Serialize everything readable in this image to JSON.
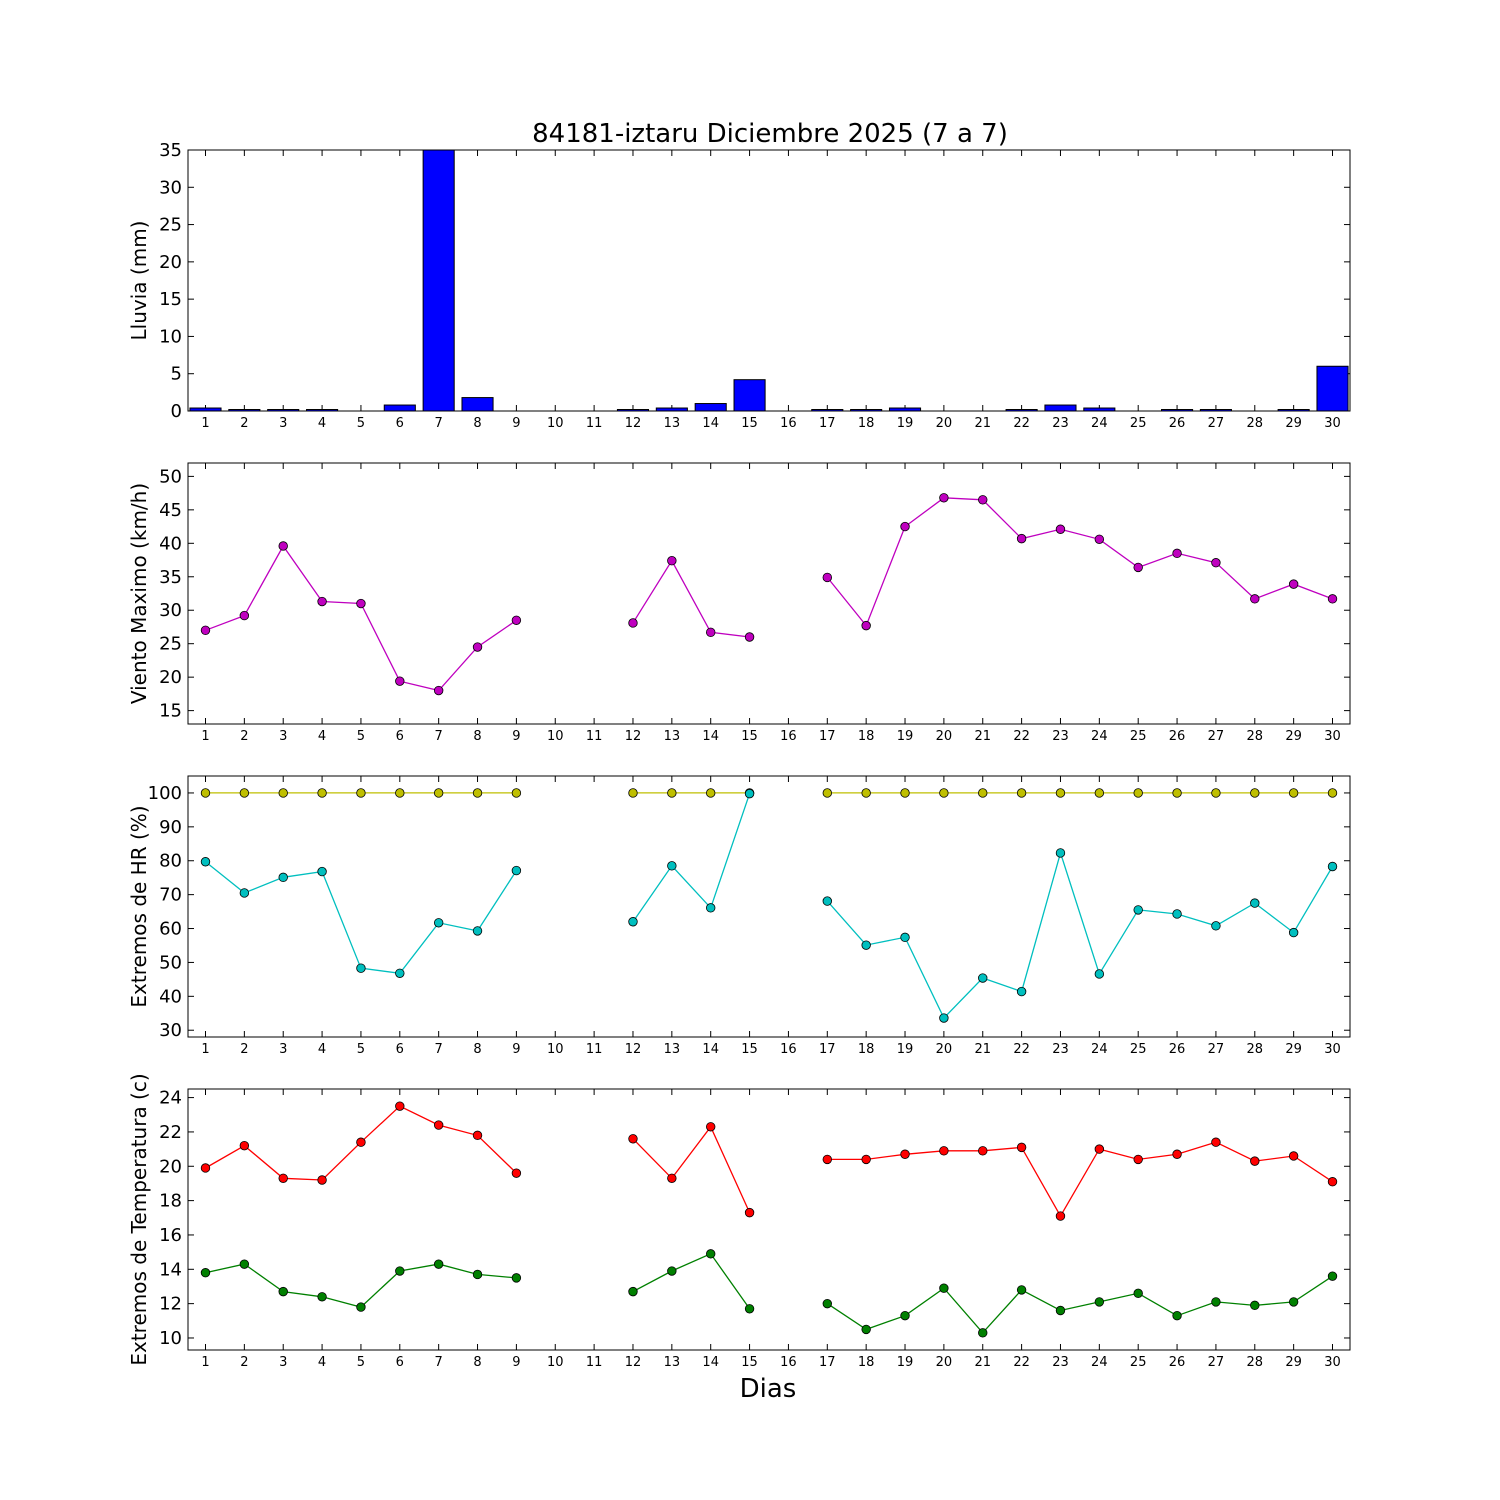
{
  "title": "84181-iztaru Diciembre 2025  (7 a 7)",
  "xlabel": "Dias",
  "chart_data": [
    {
      "type": "bar",
      "ylabel": "Lluvia (mm)",
      "ylim": [
        0,
        35
      ],
      "yticks": [
        0,
        5,
        10,
        15,
        20,
        25,
        30,
        35
      ],
      "x": [
        1,
        2,
        3,
        4,
        5,
        6,
        7,
        8,
        9,
        10,
        11,
        12,
        13,
        14,
        15,
        16,
        17,
        18,
        19,
        20,
        21,
        22,
        23,
        24,
        25,
        26,
        27,
        28,
        29,
        30
      ],
      "series": [
        {
          "color": "#0000ff",
          "values": [
            0.4,
            0.2,
            0.2,
            0.2,
            0.0,
            0.8,
            35.0,
            1.8,
            0.0,
            0.0,
            0.0,
            0.2,
            0.4,
            1.0,
            4.2,
            0.0,
            0.2,
            0.2,
            0.4,
            0.0,
            0.0,
            0.2,
            0.8,
            0.4,
            0.0,
            0.2,
            0.2,
            0.0,
            0.2,
            6.0
          ]
        }
      ]
    },
    {
      "type": "line",
      "ylabel": "Viento Maximo (km/h)",
      "ylim": [
        13,
        52
      ],
      "yticks": [
        15,
        20,
        25,
        30,
        35,
        40,
        45,
        50
      ],
      "x": [
        1,
        2,
        3,
        4,
        5,
        6,
        7,
        8,
        9,
        10,
        11,
        12,
        13,
        14,
        15,
        16,
        17,
        18,
        19,
        20,
        21,
        22,
        23,
        24,
        25,
        26,
        27,
        28,
        29,
        30
      ],
      "series": [
        {
          "color": "#bf00bf",
          "values": [
            27.0,
            29.2,
            39.6,
            31.3,
            31.0,
            19.4,
            18.0,
            24.5,
            28.5,
            null,
            null,
            28.1,
            37.4,
            26.7,
            26.0,
            null,
            34.9,
            27.7,
            42.5,
            46.8,
            46.5,
            40.7,
            42.1,
            40.6,
            36.4,
            38.5,
            37.1,
            31.7,
            33.9,
            31.7
          ]
        }
      ]
    },
    {
      "type": "line",
      "ylabel": "Extremos de HR (%)",
      "ylim": [
        28,
        105
      ],
      "yticks": [
        30,
        40,
        50,
        60,
        70,
        80,
        90,
        100
      ],
      "x": [
        1,
        2,
        3,
        4,
        5,
        6,
        7,
        8,
        9,
        10,
        11,
        12,
        13,
        14,
        15,
        16,
        17,
        18,
        19,
        20,
        21,
        22,
        23,
        24,
        25,
        26,
        27,
        28,
        29,
        30
      ],
      "series": [
        {
          "color": "#bfbf00",
          "values": [
            100,
            100,
            100,
            100,
            100,
            100,
            100,
            100,
            100,
            null,
            null,
            100,
            100,
            100,
            100,
            null,
            100,
            100,
            100,
            100,
            100,
            100,
            100,
            100,
            100,
            100,
            100,
            100,
            100,
            100
          ]
        },
        {
          "color": "#00bfbf",
          "values": [
            79.7,
            70.5,
            75.1,
            76.8,
            48.3,
            46.8,
            61.7,
            59.3,
            77.1,
            null,
            null,
            62.0,
            78.5,
            66.1,
            99.8,
            null,
            68.1,
            55.1,
            57.4,
            33.6,
            45.4,
            41.4,
            82.3,
            46.6,
            65.5,
            64.3,
            60.8,
            67.5,
            58.8,
            78.3
          ]
        }
      ]
    },
    {
      "type": "line",
      "ylabel": "Extremos de Temperatura (c)",
      "ylim": [
        9.3,
        24.5
      ],
      "yticks": [
        10,
        12,
        14,
        16,
        18,
        20,
        22,
        24
      ],
      "x": [
        1,
        2,
        3,
        4,
        5,
        6,
        7,
        8,
        9,
        10,
        11,
        12,
        13,
        14,
        15,
        16,
        17,
        18,
        19,
        20,
        21,
        22,
        23,
        24,
        25,
        26,
        27,
        28,
        29,
        30
      ],
      "series": [
        {
          "color": "#ff0000",
          "values": [
            19.9,
            21.2,
            19.3,
            19.2,
            21.4,
            23.5,
            22.4,
            21.8,
            19.6,
            null,
            null,
            21.6,
            19.3,
            22.3,
            17.3,
            null,
            20.4,
            20.4,
            20.7,
            20.9,
            20.9,
            21.1,
            17.1,
            21.0,
            20.4,
            20.7,
            21.4,
            20.3,
            20.6,
            19.1
          ]
        },
        {
          "color": "#008000",
          "values": [
            13.8,
            14.3,
            12.7,
            12.4,
            11.8,
            13.9,
            14.3,
            13.7,
            13.5,
            null,
            null,
            12.7,
            13.9,
            14.9,
            11.7,
            null,
            12.0,
            10.5,
            11.3,
            12.9,
            10.3,
            12.8,
            11.6,
            12.1,
            12.6,
            11.3,
            12.1,
            11.9,
            12.1,
            13.6
          ]
        }
      ]
    }
  ]
}
